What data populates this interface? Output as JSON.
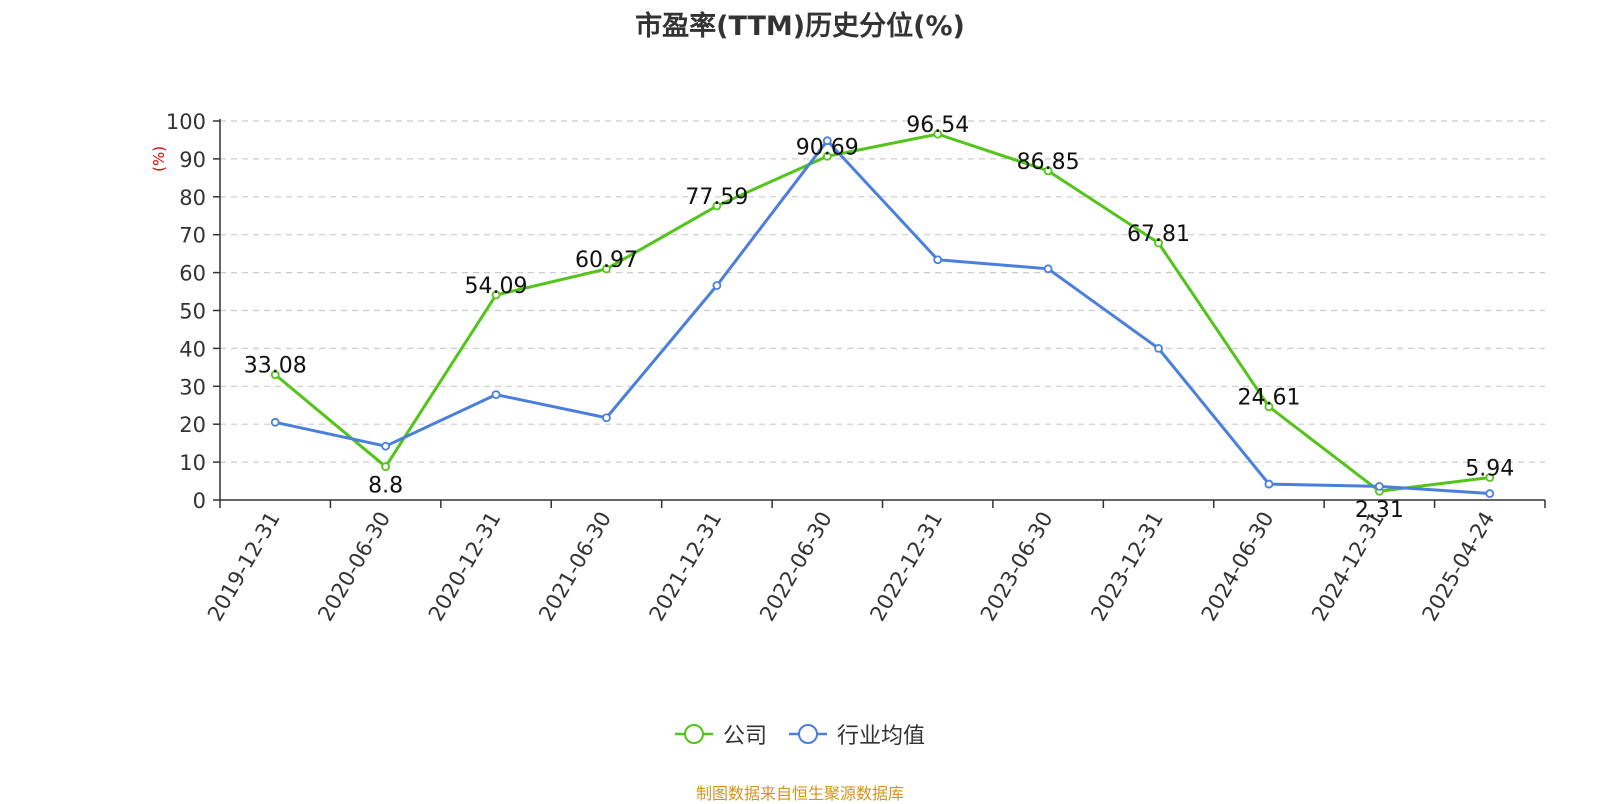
{
  "chart_data": {
    "type": "line",
    "title": "市盈率(TTM)历史分位(%)",
    "ylabel": "(%)",
    "ylim": [
      0,
      100
    ],
    "yticks": [
      0,
      10,
      20,
      30,
      40,
      50,
      60,
      70,
      80,
      90,
      100
    ],
    "categories": [
      "2019-12-31",
      "2020-06-30",
      "2020-12-31",
      "2021-06-30",
      "2021-12-31",
      "2022-06-30",
      "2022-12-31",
      "2023-06-30",
      "2023-12-31",
      "2024-06-30",
      "2024-12-31",
      "2025-04-24"
    ],
    "series": [
      {
        "name": "公司",
        "color": "#52c41a",
        "values": [
          33.08,
          8.8,
          54.09,
          60.97,
          77.59,
          90.69,
          96.54,
          86.85,
          67.81,
          24.61,
          2.31,
          5.94
        ],
        "labels": [
          "33.08",
          "8.8",
          "54.09",
          "60.97",
          "77.59",
          "90.69",
          "96.54",
          "86.85",
          "67.81",
          "24.61",
          "2.31",
          "5.94"
        ]
      },
      {
        "name": "行业均值",
        "color": "#4a7fdb",
        "values": [
          20.5,
          14.2,
          27.8,
          21.7,
          56.6,
          94.8,
          63.4,
          61.0,
          40.0,
          4.2,
          3.6,
          1.7
        ]
      }
    ],
    "grid": true,
    "legend_position": "bottom"
  },
  "footer": {
    "text": "制图数据来自恒生聚源数据库",
    "color": "#d4941f"
  },
  "axis_label_color": "#e00000"
}
